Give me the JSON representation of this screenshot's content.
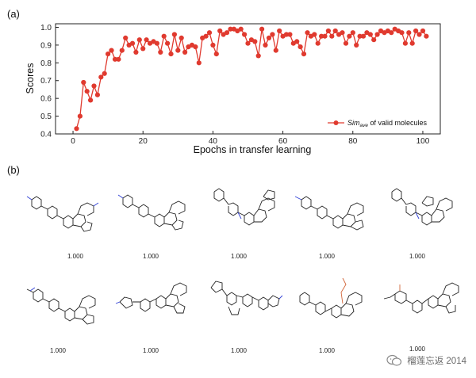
{
  "panels": {
    "a": "(a)",
    "b": "(b)"
  },
  "chart_data": {
    "type": "line",
    "ylabel": "Scores",
    "xlabel": "Epochs in transfer learning",
    "xlim": [
      -5,
      105
    ],
    "ylim": [
      0.4,
      1.02
    ],
    "xticks": [
      0,
      20,
      40,
      60,
      80,
      100
    ],
    "yticks": [
      0.4,
      0.5,
      0.6,
      0.7,
      0.8,
      0.9,
      1.0
    ],
    "ytick_labels": [
      "0.4",
      "0.5",
      "0.6",
      "0.7",
      "0.8",
      "0.9",
      "1.0"
    ],
    "series": [
      {
        "name": "Sim_ave of valid molecules",
        "legend_main": "Sim",
        "legend_sub": "ave",
        "legend_rest": " of valid molecules",
        "color": "#e03a2f",
        "x": [
          1,
          2,
          3,
          4,
          5,
          6,
          7,
          8,
          9,
          10,
          11,
          12,
          13,
          14,
          15,
          16,
          17,
          18,
          19,
          20,
          21,
          22,
          23,
          24,
          25,
          26,
          27,
          28,
          29,
          30,
          31,
          32,
          33,
          34,
          35,
          36,
          37,
          38,
          39,
          40,
          41,
          42,
          43,
          44,
          45,
          46,
          47,
          48,
          49,
          50,
          51,
          52,
          53,
          54,
          55,
          56,
          57,
          58,
          59,
          60,
          61,
          62,
          63,
          64,
          65,
          66,
          67,
          68,
          69,
          70,
          71,
          72,
          73,
          74,
          75,
          76,
          77,
          78,
          79,
          80,
          81,
          82,
          83,
          84,
          85,
          86,
          87,
          88,
          89,
          90,
          91,
          92,
          93,
          94,
          95,
          96,
          97,
          98,
          99,
          100,
          101
        ],
        "y": [
          0.43,
          0.5,
          0.69,
          0.64,
          0.59,
          0.67,
          0.62,
          0.72,
          0.74,
          0.85,
          0.87,
          0.82,
          0.82,
          0.87,
          0.94,
          0.9,
          0.91,
          0.86,
          0.93,
          0.88,
          0.93,
          0.91,
          0.92,
          0.91,
          0.86,
          0.95,
          0.91,
          0.85,
          0.96,
          0.87,
          0.94,
          0.86,
          0.89,
          0.9,
          0.89,
          0.8,
          0.94,
          0.95,
          0.97,
          0.9,
          0.85,
          0.98,
          0.96,
          0.97,
          0.99,
          0.99,
          0.98,
          0.99,
          0.96,
          0.91,
          0.93,
          0.92,
          0.84,
          0.99,
          0.9,
          0.94,
          0.96,
          0.87,
          0.98,
          0.95,
          0.96,
          0.96,
          0.91,
          0.92,
          0.89,
          0.85,
          0.97,
          0.95,
          0.96,
          0.91,
          0.95,
          0.95,
          0.98,
          0.95,
          0.98,
          0.96,
          0.97,
          0.91,
          0.95,
          0.97,
          0.9,
          0.95,
          0.95,
          0.97,
          0.96,
          0.93,
          0.96,
          0.98,
          0.97,
          0.98,
          0.97,
          0.99,
          0.98,
          0.97,
          0.91,
          0.97,
          0.91,
          0.98,
          0.96,
          0.98,
          0.95
        ]
      }
    ]
  },
  "molecules": [
    {
      "score": "1.000"
    },
    {
      "score": "1.000"
    },
    {
      "score": "1.000"
    },
    {
      "score": "1.000"
    },
    {
      "score": "1.000"
    },
    {
      "score": "1.000"
    },
    {
      "score": "1.000"
    },
    {
      "score": "1.000"
    },
    {
      "score": "1.000"
    },
    {
      "score": "1.000"
    }
  ],
  "watermark": {
    "text": "榴莲忘返 2014",
    "icon": "wechat-icon"
  }
}
